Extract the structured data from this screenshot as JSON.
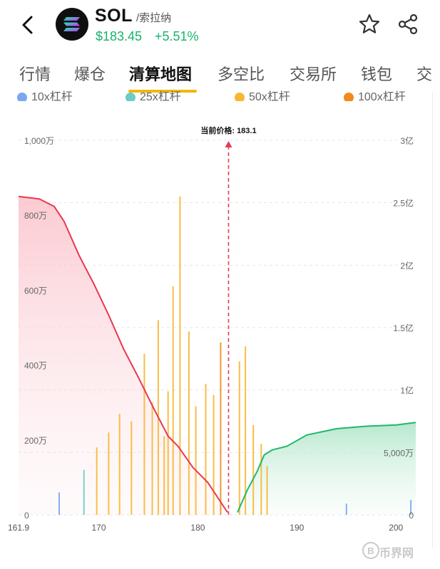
{
  "header": {
    "coin_name": "SOL",
    "coin_sub": "/索拉纳",
    "price": "$183.45",
    "change": "+5.51%",
    "icons": [
      "back-arrow-icon",
      "solana-logo-icon",
      "star-icon",
      "share-icon"
    ]
  },
  "tabs": [
    {
      "label": "行情"
    },
    {
      "label": "爆仓"
    },
    {
      "label": "清算地图",
      "active": true
    },
    {
      "label": "多空比"
    },
    {
      "label": "交易所"
    },
    {
      "label": "钱包"
    },
    {
      "label": "交"
    }
  ],
  "legend": [
    {
      "label": "10x杠杆",
      "color": "#7ba6f2"
    },
    {
      "label": "25x杠杆",
      "color": "#6ecbc7"
    },
    {
      "label": "50x杠杆",
      "color": "#f7b733"
    },
    {
      "label": "100x杠杆",
      "color": "#f28a1c"
    }
  ],
  "colors": {
    "accent": "#f0b90b",
    "positive": "#19b36b",
    "long_line": "#e8384f",
    "short_line": "#1fb86a",
    "current_price_line": "#e23b53"
  },
  "chart_data": {
    "type": "bar",
    "current_price_label": "当前价格: 183.1",
    "current_price": 183.1,
    "x_ticks": [
      "161.9",
      "170",
      "180",
      "190",
      "200"
    ],
    "xlim": [
      161.9,
      202.0
    ],
    "y_left_ticks": [
      "0",
      "200万",
      "400万",
      "600万",
      "800万",
      "1,000万"
    ],
    "y_left_lim": [
      0,
      10000000
    ],
    "y_right_ticks": [
      "0",
      "5,000万",
      "1亿",
      "1.5亿",
      "2亿",
      "2.5亿",
      "3亿"
    ],
    "y_right_lim": [
      0,
      300000000
    ],
    "grid": true,
    "legend_position": "top",
    "bars": [
      {
        "x": 178.2,
        "value": 8500000,
        "leverage": "50x"
      },
      {
        "x": 177.5,
        "value": 6100000,
        "leverage": "50x"
      },
      {
        "x": 176.0,
        "value": 5200000,
        "leverage": "50x"
      },
      {
        "x": 179.1,
        "value": 4900000,
        "leverage": "50x"
      },
      {
        "x": 182.3,
        "value": 4600000,
        "leverage": "100x"
      },
      {
        "x": 184.8,
        "value": 4500000,
        "leverage": "50x"
      },
      {
        "x": 174.6,
        "value": 4300000,
        "leverage": "50x"
      },
      {
        "x": 184.2,
        "value": 4100000,
        "leverage": "50x"
      },
      {
        "x": 180.8,
        "value": 3500000,
        "leverage": "50x"
      },
      {
        "x": 177.0,
        "value": 3300000,
        "leverage": "50x"
      },
      {
        "x": 175.4,
        "value": 3000000,
        "leverage": "50x"
      },
      {
        "x": 181.6,
        "value": 3200000,
        "leverage": "50x"
      },
      {
        "x": 172.1,
        "value": 2700000,
        "leverage": "50x"
      },
      {
        "x": 173.3,
        "value": 2500000,
        "leverage": "50x"
      },
      {
        "x": 171.0,
        "value": 2200000,
        "leverage": "50x"
      },
      {
        "x": 185.6,
        "value": 2400000,
        "leverage": "50x"
      },
      {
        "x": 186.4,
        "value": 1900000,
        "leverage": "50x"
      },
      {
        "x": 169.8,
        "value": 1800000,
        "leverage": "50x"
      },
      {
        "x": 179.8,
        "value": 2900000,
        "leverage": "50x"
      },
      {
        "x": 176.6,
        "value": 2100000,
        "leverage": "50x"
      },
      {
        "x": 168.5,
        "value": 1200000,
        "leverage": "25x"
      },
      {
        "x": 187.0,
        "value": 1300000,
        "leverage": "50x"
      },
      {
        "x": 166.0,
        "value": 600000,
        "leverage": "10x"
      },
      {
        "x": 195.0,
        "value": 300000,
        "leverage": "10x"
      },
      {
        "x": 201.5,
        "value": 400000,
        "leverage": "10x"
      }
    ],
    "long_cumulative": {
      "name": "",
      "x": [
        161.9,
        164.0,
        165.5,
        166.5,
        168.0,
        169.5,
        171.0,
        172.5,
        174.0,
        175.5,
        177.0,
        178.0,
        179.5,
        181.0,
        182.0,
        183.0
      ],
      "values": [
        255000000,
        253000000,
        247000000,
        235000000,
        208000000,
        185000000,
        160000000,
        133000000,
        110000000,
        86000000,
        63000000,
        55000000,
        38000000,
        26000000,
        14000000,
        2000000
      ]
    },
    "short_cumulative": {
      "name": "",
      "x": [
        184.0,
        185.0,
        186.0,
        186.7,
        187.5,
        189.0,
        191.0,
        194.0,
        197.0,
        200.0,
        202.0
      ],
      "values": [
        2000000,
        20000000,
        35000000,
        48000000,
        52000000,
        55000000,
        64000000,
        69000000,
        71000000,
        72000000,
        74000000
      ]
    }
  },
  "watermark": {
    "text": "币界网"
  }
}
